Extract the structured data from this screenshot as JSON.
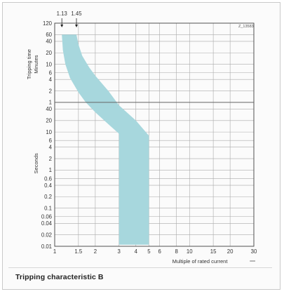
{
  "chart_data": {
    "type": "area",
    "title": "Tripping characteristic B",
    "xlabel": "Multiple of rated current",
    "ylabel_top": "Tripping time",
    "ylabel_minutes": "Minutes",
    "ylabel_seconds": "Seconds",
    "x_scale": "log",
    "y_scale": "log",
    "xlim": [
      1,
      30
    ],
    "x_ticks": [
      1,
      1.5,
      2,
      3,
      4,
      5,
      6,
      8,
      10,
      15,
      20,
      30
    ],
    "x_tick_labels": [
      "1",
      "1.5",
      "2",
      "3",
      "4",
      "5",
      "6",
      "8",
      "10",
      "15",
      "20",
      "30"
    ],
    "y_ticks_minutes": [
      120,
      60,
      40,
      20,
      10,
      6,
      4,
      2,
      1
    ],
    "y_tick_labels_minutes": [
      "120",
      "60",
      "40",
      "20",
      "10",
      "6",
      "4",
      "2",
      "1"
    ],
    "y_ticks_seconds": [
      40,
      20,
      10,
      6,
      4,
      2,
      1,
      0.6,
      0.4,
      0.2,
      0.1,
      0.06,
      0.04,
      0.02,
      0.01
    ],
    "y_tick_labels_seconds": [
      "40",
      "20",
      "10",
      "6",
      "4",
      "2",
      "1",
      "0.6",
      "0.4",
      "0.2",
      "0.1",
      "0.06",
      "0.04",
      "0.02",
      "0.01"
    ],
    "ylim_seconds": [
      0.01,
      7200
    ],
    "markers": [
      {
        "label": "1.13",
        "x": 1.13
      },
      {
        "label": "1.45",
        "x": 1.45
      }
    ],
    "figure_id": "Z_13583",
    "band_color": "#a7d7dd",
    "band": {
      "lower_edge": [
        {
          "x": 1.13,
          "t_s": 3600
        },
        {
          "x": 1.15,
          "t_s": 1400
        },
        {
          "x": 1.2,
          "t_s": 600
        },
        {
          "x": 1.3,
          "t_s": 260
        },
        {
          "x": 1.5,
          "t_s": 110
        },
        {
          "x": 1.7,
          "t_s": 60
        },
        {
          "x": 2,
          "t_s": 33
        },
        {
          "x": 2.5,
          "t_s": 16
        },
        {
          "x": 3,
          "t_s": 9
        },
        {
          "x": 3,
          "t_s": 0.011
        }
      ],
      "upper_edge": [
        {
          "x": 1.45,
          "t_s": 3600
        },
        {
          "x": 1.5,
          "t_s": 2000
        },
        {
          "x": 1.6,
          "t_s": 1000
        },
        {
          "x": 1.8,
          "t_s": 500
        },
        {
          "x": 2,
          "t_s": 300
        },
        {
          "x": 2.5,
          "t_s": 120
        },
        {
          "x": 3,
          "t_s": 50
        },
        {
          "x": 4,
          "t_s": 20
        },
        {
          "x": 5,
          "t_s": 8
        },
        {
          "x": 5,
          "t_s": 0.011
        }
      ]
    }
  }
}
